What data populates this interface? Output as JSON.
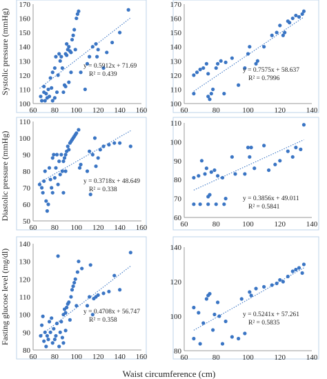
{
  "figure": {
    "xlabel": "Waist circumference (cm)",
    "ylabels": [
      "Systolic pressure (mmHg)",
      "Diastolic pressure (mmHg)",
      "Fasting glucose level (mg/dl)"
    ]
  },
  "colors": {
    "points": "#3a75c4",
    "trend": "#3a75c4",
    "frame": "#bcd3e8"
  },
  "chart_data": [
    {
      "type": "scatter",
      "name": "systolic-left",
      "xlim": [
        60,
        160
      ],
      "ylim": [
        100,
        170
      ],
      "xticks": [
        60,
        80,
        100,
        120,
        140,
        160
      ],
      "yticks": [
        100,
        110,
        120,
        130,
        140,
        150,
        160,
        170
      ],
      "equation": "y = 0.5912x + 71.69",
      "r2": "R² = 0.439",
      "trend": {
        "slope": 0.5912,
        "intercept": 71.69,
        "x": [
          66,
          150
        ]
      },
      "points": [
        [
          67,
          105
        ],
        [
          68,
          102
        ],
        [
          70,
          108
        ],
        [
          70,
          112
        ],
        [
          71,
          102
        ],
        [
          72,
          107
        ],
        [
          73,
          104
        ],
        [
          74,
          110
        ],
        [
          75,
          105
        ],
        [
          76,
          118
        ],
        [
          77,
          111
        ],
        [
          78,
          102
        ],
        [
          78,
          122
        ],
        [
          80,
          125
        ],
        [
          80,
          104
        ],
        [
          81,
          133
        ],
        [
          82,
          108
        ],
        [
          83,
          120
        ],
        [
          84,
          135
        ],
        [
          85,
          130
        ],
        [
          86,
          133
        ],
        [
          87,
          125
        ],
        [
          88,
          108
        ],
        [
          89,
          113
        ],
        [
          90,
          112
        ],
        [
          90,
          135
        ],
        [
          91,
          134
        ],
        [
          91,
          142
        ],
        [
          92,
          138
        ],
        [
          93,
          140
        ],
        [
          93,
          115
        ],
        [
          94,
          137
        ],
        [
          95,
          136
        ],
        [
          95,
          122
        ],
        [
          96,
          145
        ],
        [
          97,
          148
        ],
        [
          98,
          152
        ],
        [
          99,
          138
        ],
        [
          100,
          160
        ],
        [
          101,
          163
        ],
        [
          102,
          165
        ],
        [
          104,
          122
        ],
        [
          108,
          110
        ],
        [
          110,
          128
        ],
        [
          112,
          133
        ],
        [
          115,
          140
        ],
        [
          118,
          142
        ],
        [
          119,
          133
        ],
        [
          120,
          138
        ],
        [
          125,
          125
        ],
        [
          128,
          136
        ],
        [
          133,
          143
        ],
        [
          140,
          150
        ],
        [
          148,
          166
        ]
      ]
    },
    {
      "type": "scatter",
      "name": "systolic-right",
      "xlim": [
        60,
        140
      ],
      "ylim": [
        100,
        170
      ],
      "xticks": [
        60,
        80,
        100,
        120,
        140
      ],
      "yticks": [
        100,
        110,
        120,
        130,
        140,
        150,
        160,
        170
      ],
      "equation": "y = 0.7575x + 58.637",
      "r2": "R² = 0.7996",
      "trend": {
        "slope": 0.7575,
        "intercept": 58.637,
        "x": [
          66,
          135
        ]
      },
      "points": [
        [
          66,
          120
        ],
        [
          66,
          107
        ],
        [
          68,
          122
        ],
        [
          70,
          124
        ],
        [
          72,
          125
        ],
        [
          74,
          128
        ],
        [
          75,
          105
        ],
        [
          75,
          121
        ],
        [
          76,
          103
        ],
        [
          77,
          107
        ],
        [
          78,
          110
        ],
        [
          80,
          125
        ],
        [
          81,
          128
        ],
        [
          83,
          130
        ],
        [
          85,
          107
        ],
        [
          86,
          129
        ],
        [
          90,
          132
        ],
        [
          94,
          113
        ],
        [
          98,
          125
        ],
        [
          100,
          135
        ],
        [
          101,
          140
        ],
        [
          105,
          128
        ],
        [
          106,
          130
        ],
        [
          110,
          140
        ],
        [
          115,
          148
        ],
        [
          118,
          150
        ],
        [
          120,
          155
        ],
        [
          122,
          148
        ],
        [
          123,
          150
        ],
        [
          125,
          158
        ],
        [
          126,
          157
        ],
        [
          128,
          160
        ],
        [
          130,
          162
        ],
        [
          132,
          161
        ],
        [
          134,
          163
        ],
        [
          135,
          165
        ]
      ]
    },
    {
      "type": "scatter",
      "name": "diastolic-left",
      "xlim": [
        60,
        160
      ],
      "ylim": [
        50,
        110
      ],
      "xticks": [
        60,
        80,
        100,
        120,
        140,
        160
      ],
      "yticks": [
        50,
        60,
        70,
        80,
        90,
        100,
        110
      ],
      "equation": "y = 0.3718x + 48.649",
      "r2": "R² = 0.338",
      "trend": {
        "slope": 0.3718,
        "intercept": 48.649,
        "x": [
          66,
          150
        ]
      },
      "points": [
        [
          66,
          72
        ],
        [
          68,
          70
        ],
        [
          69,
          67
        ],
        [
          70,
          74
        ],
        [
          71,
          80
        ],
        [
          72,
          62
        ],
        [
          73,
          56
        ],
        [
          74,
          60
        ],
        [
          75,
          82
        ],
        [
          76,
          75
        ],
        [
          77,
          70
        ],
        [
          78,
          88
        ],
        [
          78,
          67
        ],
        [
          79,
          90
        ],
        [
          80,
          76
        ],
        [
          81,
          82
        ],
        [
          82,
          90
        ],
        [
          83,
          72
        ],
        [
          84,
          86
        ],
        [
          85,
          78
        ],
        [
          86,
          90
        ],
        [
          87,
          80
        ],
        [
          88,
          86
        ],
        [
          88,
          67
        ],
        [
          89,
          88
        ],
        [
          90,
          90
        ],
        [
          90,
          80
        ],
        [
          91,
          92
        ],
        [
          92,
          95
        ],
        [
          93,
          93
        ],
        [
          94,
          97
        ],
        [
          95,
          98
        ],
        [
          96,
          99
        ],
        [
          97,
          100
        ],
        [
          98,
          101
        ],
        [
          99,
          102
        ],
        [
          100,
          103
        ],
        [
          102,
          105
        ],
        [
          103,
          82
        ],
        [
          104,
          84
        ],
        [
          110,
          80
        ],
        [
          112,
          92
        ],
        [
          113,
          66
        ],
        [
          115,
          90
        ],
        [
          117,
          100
        ],
        [
          118,
          83
        ],
        [
          120,
          88
        ],
        [
          122,
          93
        ],
        [
          125,
          95
        ],
        [
          130,
          96
        ],
        [
          135,
          97
        ],
        [
          140,
          97
        ],
        [
          150,
          95
        ]
      ]
    },
    {
      "type": "scatter",
      "name": "diastolic-right",
      "xlim": [
        60,
        140
      ],
      "ylim": [
        60,
        110
      ],
      "xticks": [
        60,
        80,
        100,
        120,
        140
      ],
      "yticks": [
        60,
        70,
        80,
        90,
        100,
        110
      ],
      "equation": "y = 0.3856x + 49.011",
      "r2": "R² = 0.5841",
      "trend": {
        "slope": 0.3856,
        "intercept": 49.011,
        "x": [
          66,
          135
        ]
      },
      "points": [
        [
          66,
          81
        ],
        [
          66,
          67
        ],
        [
          69,
          82
        ],
        [
          70,
          67
        ],
        [
          71,
          90
        ],
        [
          73,
          83
        ],
        [
          74,
          86
        ],
        [
          75,
          67
        ],
        [
          75,
          71
        ],
        [
          76,
          72
        ],
        [
          77,
          84
        ],
        [
          79,
          85
        ],
        [
          80,
          67
        ],
        [
          81,
          82
        ],
        [
          84,
          81
        ],
        [
          85,
          67
        ],
        [
          86,
          70
        ],
        [
          90,
          92
        ],
        [
          92,
          83
        ],
        [
          98,
          83
        ],
        [
          100,
          97
        ],
        [
          101,
          92
        ],
        [
          102,
          97
        ],
        [
          104,
          86
        ],
        [
          110,
          98
        ],
        [
          113,
          85
        ],
        [
          117,
          88
        ],
        [
          120,
          90
        ],
        [
          125,
          95
        ],
        [
          128,
          92
        ],
        [
          130,
          97
        ],
        [
          133,
          96
        ],
        [
          135,
          109
        ]
      ]
    },
    {
      "type": "scatter",
      "name": "glucose-left",
      "xlim": [
        60,
        160
      ],
      "ylim": [
        80,
        140
      ],
      "xticks": [
        60,
        80,
        100,
        120,
        140,
        160
      ],
      "yticks": [
        80,
        90,
        100,
        110,
        120,
        130,
        140
      ],
      "equation": "y = 0.4708x + 56.747",
      "r2": "R² = 0.358",
      "trend": {
        "slope": 0.4708,
        "intercept": 56.747,
        "x": [
          66,
          150
        ]
      },
      "points": [
        [
          67,
          88
        ],
        [
          68,
          94
        ],
        [
          69,
          99
        ],
        [
          70,
          85
        ],
        [
          71,
          90
        ],
        [
          72,
          82
        ],
        [
          73,
          88
        ],
        [
          74,
          86
        ],
        [
          75,
          96
        ],
        [
          76,
          90
        ],
        [
          77,
          98
        ],
        [
          78,
          84
        ],
        [
          79,
          92
        ],
        [
          80,
          86
        ],
        [
          81,
          88
        ],
        [
          82,
          95
        ],
        [
          83,
          133
        ],
        [
          84,
          82
        ],
        [
          85,
          90
        ],
        [
          86,
          96
        ],
        [
          87,
          87
        ],
        [
          88,
          100
        ],
        [
          88,
          84
        ],
        [
          89,
          103
        ],
        [
          90,
          101
        ],
        [
          90,
          91
        ],
        [
          91,
          104
        ],
        [
          92,
          106
        ],
        [
          93,
          107
        ],
        [
          94,
          97
        ],
        [
          95,
          110
        ],
        [
          96,
          114
        ],
        [
          97,
          116
        ],
        [
          98,
          118
        ],
        [
          99,
          120
        ],
        [
          100,
          105
        ],
        [
          101,
          124
        ],
        [
          102,
          130
        ],
        [
          105,
          126
        ],
        [
          110,
          105
        ],
        [
          112,
          110
        ],
        [
          113,
          128
        ],
        [
          115,
          100
        ],
        [
          116,
          109
        ],
        [
          118,
          110
        ],
        [
          120,
          111
        ],
        [
          125,
          112
        ],
        [
          130,
          113
        ],
        [
          135,
          122
        ],
        [
          140,
          114
        ],
        [
          150,
          135
        ]
      ]
    },
    {
      "type": "scatter",
      "name": "glucose-right",
      "xlim": [
        60,
        140
      ],
      "ylim": [
        80,
        140
      ],
      "xticks": [
        60,
        80,
        100,
        120,
        140
      ],
      "yticks": [
        80,
        100,
        120,
        140
      ],
      "equation": "y = 0.5241x + 57.261",
      "r2": "R² = 0.5835",
      "trend": {
        "slope": 0.5241,
        "intercept": 57.261,
        "x": [
          66,
          135
        ]
      },
      "points": [
        [
          66,
          105
        ],
        [
          66,
          87
        ],
        [
          69,
          102
        ],
        [
          70,
          84
        ],
        [
          72,
          96
        ],
        [
          74,
          110
        ],
        [
          75,
          112
        ],
        [
          76,
          113
        ],
        [
          78,
          92
        ],
        [
          79,
          101
        ],
        [
          81,
          108
        ],
        [
          82,
          100
        ],
        [
          84,
          84
        ],
        [
          86,
          97
        ],
        [
          90,
          88
        ],
        [
          94,
          87
        ],
        [
          96,
          110
        ],
        [
          98,
          90
        ],
        [
          101,
          114
        ],
        [
          102,
          112
        ],
        [
          105,
          116
        ],
        [
          110,
          117
        ],
        [
          115,
          118
        ],
        [
          118,
          119
        ],
        [
          120,
          121
        ],
        [
          122,
          120
        ],
        [
          125,
          123
        ],
        [
          128,
          126
        ],
        [
          130,
          127
        ],
        [
          132,
          128
        ],
        [
          135,
          130
        ],
        [
          134,
          125
        ]
      ]
    }
  ]
}
